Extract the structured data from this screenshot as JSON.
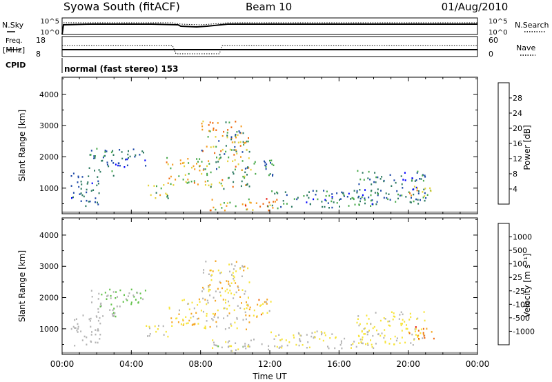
{
  "header": {
    "station": "Syowa South (fitACF)",
    "beam": "Beam 10",
    "date": "01/Aug/2010"
  },
  "status_panel": {
    "left_top": "N.Sky",
    "left_top_ticks": [
      "10^5",
      "10^0"
    ],
    "right_top": "N.Search",
    "right_top_ticks": [
      "10^5",
      "10^0"
    ],
    "left_mid_label_1": "Freq.",
    "left_mid_label_2": "[MHz]",
    "left_mid_ticks": [
      "18",
      "8"
    ],
    "right_mid": "Nave",
    "right_mid_ticks": [
      "60",
      "0"
    ],
    "cpid_label": "CPID",
    "cpid_value": "normal (fast stereo) 153"
  },
  "colors": {
    "power_scale": [
      "#0000ff",
      "#1f4aa8",
      "#2e7a62",
      "#49a94c",
      "#e5d33a",
      "#f59a1e",
      "#ef6a10",
      "#e81b10"
    ],
    "velocity_scale": [
      "#1a2fa8",
      "#2a55b2",
      "#2e7a62",
      "#62c24a",
      "#b4b4b4",
      "#f7e43a",
      "#f5a623",
      "#ef6a10",
      "#e81b10"
    ],
    "ground": "#9a9a9a"
  },
  "chart_data": [
    {
      "type": "heatmap",
      "name": "power",
      "ylabel": "Slant Range [km]",
      "yticks": [
        "1000",
        "2000",
        "3000",
        "4000"
      ],
      "ylim": [
        180,
        4550
      ],
      "xlim": [
        0,
        24
      ],
      "colorbar": {
        "label": "Power [dB]",
        "ticks": [
          "4",
          "8",
          "12",
          "16",
          "20",
          "24",
          "28"
        ],
        "range": [
          0,
          32
        ]
      },
      "echo_regions": [
        {
          "t0": 0.5,
          "t1": 2.2,
          "r0": 450,
          "r1": 1500,
          "v0": 3,
          "v1": 12
        },
        {
          "t0": 1.5,
          "t1": 3.0,
          "r0": 1400,
          "r1": 2300,
          "v0": 4,
          "v1": 14
        },
        {
          "t0": 3.0,
          "t1": 4.8,
          "r0": 1700,
          "r1": 2300,
          "v0": 3,
          "v1": 10
        },
        {
          "t0": 4.8,
          "t1": 6.2,
          "r0": 700,
          "r1": 1150,
          "v0": 8,
          "v1": 22
        },
        {
          "t0": 6.0,
          "t1": 8.0,
          "r0": 1100,
          "r1": 2000,
          "v0": 12,
          "v1": 26
        },
        {
          "t0": 8.0,
          "t1": 10.8,
          "r0": 1000,
          "r1": 3200,
          "v0": 6,
          "v1": 28
        },
        {
          "t0": 8.5,
          "t1": 12.5,
          "r0": 300,
          "r1": 700,
          "v0": 14,
          "v1": 30
        },
        {
          "t0": 10.5,
          "t1": 12.2,
          "r0": 1400,
          "r1": 2000,
          "v0": 4,
          "v1": 18
        },
        {
          "t0": 12.0,
          "t1": 18.0,
          "r0": 400,
          "r1": 950,
          "v0": 3,
          "v1": 16
        },
        {
          "t0": 17.0,
          "t1": 21.0,
          "r0": 500,
          "r1": 1600,
          "v0": 3,
          "v1": 14
        },
        {
          "t0": 20.0,
          "t1": 21.5,
          "r0": 700,
          "r1": 1100,
          "v0": 12,
          "v1": 28
        }
      ]
    },
    {
      "type": "heatmap",
      "name": "velocity",
      "ylabel": "Slant Range [km]",
      "yticks": [
        "1000",
        "2000",
        "3000",
        "4000"
      ],
      "ylim": [
        180,
        4550
      ],
      "xlim": [
        0,
        24
      ],
      "xticks": [
        "00:00",
        "04:00",
        "08:00",
        "12:00",
        "16:00",
        "20:00",
        "00:00"
      ],
      "xlabel": "Time UT",
      "colorbar": {
        "label": "Velocity [m s⁻¹]",
        "ticks": [
          "1000",
          "500",
          "100",
          "25",
          "-25",
          "-100",
          "-500",
          "-1000"
        ],
        "range": [
          -1200,
          1200
        ]
      },
      "echo_regions": [
        {
          "t0": 0.5,
          "t1": 2.2,
          "r0": 450,
          "r1": 1500,
          "v0": -150,
          "v1": 120
        },
        {
          "t0": 1.5,
          "t1": 3.2,
          "r0": 1400,
          "r1": 2300,
          "v0": -50,
          "v1": 200
        },
        {
          "t0": 3.0,
          "t1": 4.8,
          "r0": 1700,
          "r1": 2300,
          "v0": 30,
          "v1": 300
        },
        {
          "t0": 4.8,
          "t1": 6.2,
          "r0": 700,
          "r1": 1150,
          "v0": -300,
          "v1": 50
        },
        {
          "t0": 6.0,
          "t1": 8.0,
          "r0": 1100,
          "r1": 2000,
          "v0": -500,
          "v1": -80
        },
        {
          "t0": 8.0,
          "t1": 10.8,
          "r0": 1000,
          "r1": 3200,
          "v0": -600,
          "v1": 100
        },
        {
          "t0": 8.5,
          "t1": 12.5,
          "r0": 300,
          "r1": 700,
          "v0": -200,
          "v1": 150
        },
        {
          "t0": 10.5,
          "t1": 12.2,
          "r0": 1400,
          "r1": 2000,
          "v0": -700,
          "v1": -100
        },
        {
          "t0": 12.0,
          "t1": 18.0,
          "r0": 400,
          "r1": 950,
          "v0": -300,
          "v1": 80
        },
        {
          "t0": 17.0,
          "t1": 21.0,
          "r0": 500,
          "r1": 1600,
          "v0": -400,
          "v1": -50
        },
        {
          "t0": 20.0,
          "t1": 21.5,
          "r0": 700,
          "r1": 1100,
          "v0": -1000,
          "v1": -400
        }
      ]
    }
  ]
}
